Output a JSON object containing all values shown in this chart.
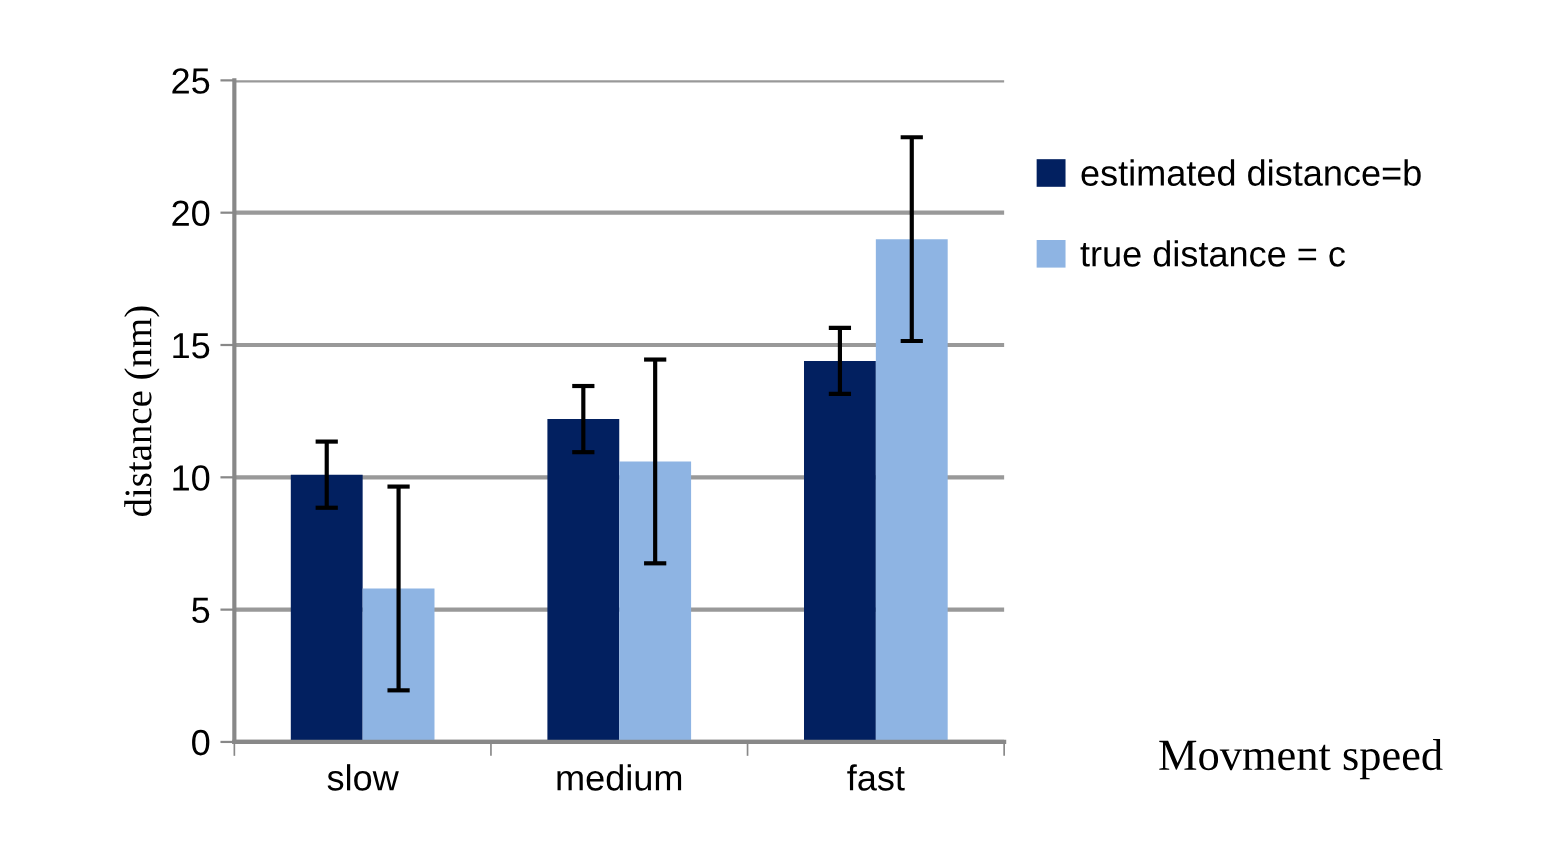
{
  "chart_data": {
    "type": "bar",
    "xlabel": "Movment speed",
    "ylabel": "distance (nm)",
    "categories": [
      "slow",
      "medium",
      "fast"
    ],
    "series": [
      {
        "name": "estimated distance=b",
        "color": "#022060",
        "values": [
          10.1,
          12.2,
          14.4
        ],
        "errors": [
          1.25,
          1.25,
          1.25
        ]
      },
      {
        "name": "true distance = c",
        "color": "#8eb4e3",
        "values": [
          5.8,
          10.6,
          19.0
        ],
        "errors": [
          3.85,
          3.85,
          3.85
        ]
      }
    ],
    "ylim": [
      0,
      25
    ],
    "yticks": [
      0,
      5,
      10,
      15,
      20,
      25
    ],
    "grid": "y",
    "legend": "top right"
  }
}
